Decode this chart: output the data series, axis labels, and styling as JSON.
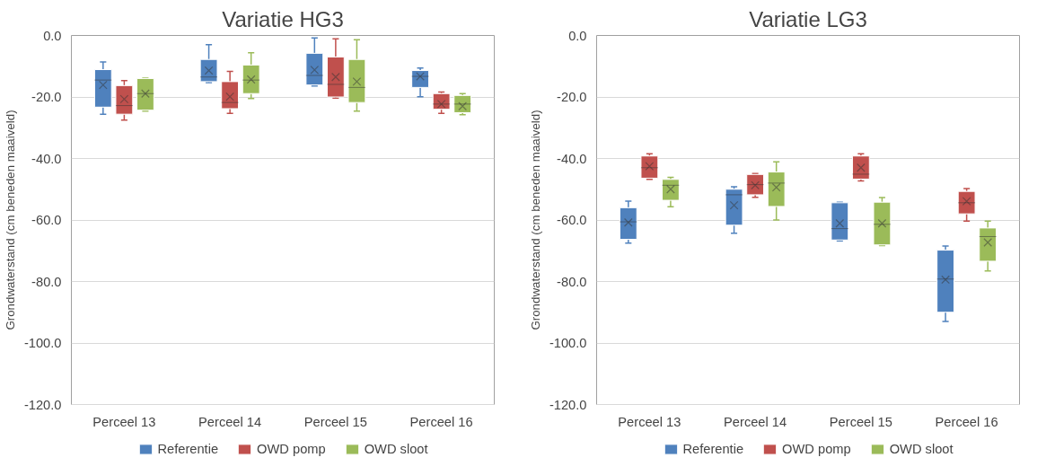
{
  "chart_data": [
    {
      "type": "box",
      "title": "Variatie HG3",
      "ylabel": "Grondwaterstand (cm beneden maaiveld)",
      "categories": [
        "Perceel 13",
        "Perceel 14",
        "Perceel 15",
        "Perceel 16"
      ],
      "ylim": [
        -120,
        0
      ],
      "yticks": [
        {
          "value": 0,
          "label": "0.0"
        },
        {
          "value": -20,
          "label": "-20.0"
        },
        {
          "value": -40,
          "label": "-40.0"
        },
        {
          "value": -60,
          "label": "-60.0"
        },
        {
          "value": -80,
          "label": "-80.0"
        },
        {
          "value": -100,
          "label": "-100.0"
        },
        {
          "value": -120,
          "label": "-120.0"
        }
      ],
      "grid": "y",
      "legend": "bottom",
      "series": [
        {
          "name": "Referentie",
          "color": "#4f81bd",
          "boxes": [
            {
              "low": -25.6,
              "q1": -23.3,
              "median": -14.5,
              "q3": -11.1,
              "high": -8.6,
              "mean": -16.1
            },
            {
              "low": -15.3,
              "q1": -15.0,
              "median": -13.5,
              "q3": -7.8,
              "high": -3.0,
              "mean": -11.4
            },
            {
              "low": -16.4,
              "q1": -16.1,
              "median": -13.0,
              "q3": -5.8,
              "high": -0.8,
              "mean": -11.2
            },
            {
              "low": -19.9,
              "q1": -16.9,
              "median": -13.3,
              "q3": -11.4,
              "high": -10.6,
              "mean": -13.3
            }
          ]
        },
        {
          "name": "OWD pomp",
          "color": "#c0504d",
          "boxes": [
            {
              "low": -27.5,
              "q1": -25.6,
              "median": -22.8,
              "q3": -16.3,
              "high": -14.7,
              "mean": -20.7
            },
            {
              "low": -25.3,
              "q1": -23.8,
              "median": -21.8,
              "q3": -15.0,
              "high": -11.7,
              "mean": -19.9
            },
            {
              "low": -20.4,
              "q1": -20.0,
              "median": -15.9,
              "q3": -7.0,
              "high": -1.1,
              "mean": -13.5
            },
            {
              "low": -25.3,
              "q1": -24.0,
              "median": -22.3,
              "q3": -18.9,
              "high": -18.4,
              "mean": -22.3
            }
          ]
        },
        {
          "name": "OWD sloot",
          "color": "#9bbb59",
          "boxes": [
            {
              "low": -24.6,
              "q1": -24.3,
              "median": -18.9,
              "q3": -14.0,
              "high": -13.9,
              "mean": -18.9
            },
            {
              "low": -20.5,
              "q1": -18.9,
              "median": -14.5,
              "q3": -9.6,
              "high": -5.6,
              "mean": -14.3
            },
            {
              "low": -24.6,
              "q1": -21.8,
              "median": -16.9,
              "q3": -7.8,
              "high": -1.4,
              "mean": -15.0
            },
            {
              "low": -25.8,
              "q1": -25.1,
              "median": -22.3,
              "q3": -19.5,
              "high": -18.9,
              "mean": -23.0
            }
          ]
        }
      ]
    },
    {
      "type": "box",
      "title": "Variatie LG3",
      "ylabel": "Grondwaterstand (cm beneden maaiveld)",
      "categories": [
        "Perceel 13",
        "Perceel 14",
        "Perceel 15",
        "Perceel 16"
      ],
      "ylim": [
        -120,
        0
      ],
      "yticks": [
        {
          "value": 0,
          "label": "0.0"
        },
        {
          "value": -20,
          "label": "-20.0"
        },
        {
          "value": -40,
          "label": "-40.0"
        },
        {
          "value": -60,
          "label": "-60.0"
        },
        {
          "value": -80,
          "label": "-80.0"
        },
        {
          "value": -100,
          "label": "-100.0"
        },
        {
          "value": -120,
          "label": "-120.0"
        }
      ],
      "grid": "y",
      "legend": "bottom",
      "series": [
        {
          "name": "Referentie",
          "color": "#4f81bd",
          "boxes": [
            {
              "low": -67.5,
              "q1": -66.3,
              "median": -60.6,
              "q3": -56.0,
              "high": -53.9,
              "mean": -60.8
            },
            {
              "low": -64.3,
              "q1": -61.7,
              "median": -51.8,
              "q3": -50.0,
              "high": -49.2,
              "mean": -55.2
            },
            {
              "low": -66.8,
              "q1": -66.5,
              "median": -62.8,
              "q3": -54.4,
              "high": -54.2,
              "mean": -61.1
            },
            {
              "low": -93.0,
              "q1": -90.0,
              "median": -79.2,
              "q3": -69.8,
              "high": -68.5,
              "mean": -79.4
            }
          ]
        },
        {
          "name": "OWD pomp",
          "color": "#c0504d",
          "boxes": [
            {
              "low": -46.8,
              "q1": -46.4,
              "median": -43.0,
              "q3": -39.2,
              "high": -38.5,
              "mean": -42.5
            },
            {
              "low": -52.6,
              "q1": -51.8,
              "median": -48.5,
              "q3": -45.2,
              "high": -44.9,
              "mean": -48.7
            },
            {
              "low": -47.3,
              "q1": -46.7,
              "median": -45.1,
              "q3": -39.2,
              "high": -38.5,
              "mean": -43.0
            },
            {
              "low": -60.4,
              "q1": -58.0,
              "median": -54.4,
              "q3": -50.7,
              "high": -49.8,
              "mean": -53.9
            }
          ]
        },
        {
          "name": "OWD sloot",
          "color": "#9bbb59",
          "boxes": [
            {
              "low": -55.7,
              "q1": -53.6,
              "median": -48.7,
              "q3": -46.8,
              "high": -46.1,
              "mean": -50.0
            },
            {
              "low": -60.0,
              "q1": -55.6,
              "median": -48.0,
              "q3": -44.4,
              "high": -41.1,
              "mean": -49.4
            },
            {
              "low": -68.3,
              "q1": -68.1,
              "median": -61.4,
              "q3": -54.2,
              "high": -52.7,
              "mean": -61.1
            },
            {
              "low": -76.6,
              "q1": -73.4,
              "median": -65.4,
              "q3": -62.6,
              "high": -60.4,
              "mean": -67.3
            }
          ]
        }
      ]
    }
  ]
}
